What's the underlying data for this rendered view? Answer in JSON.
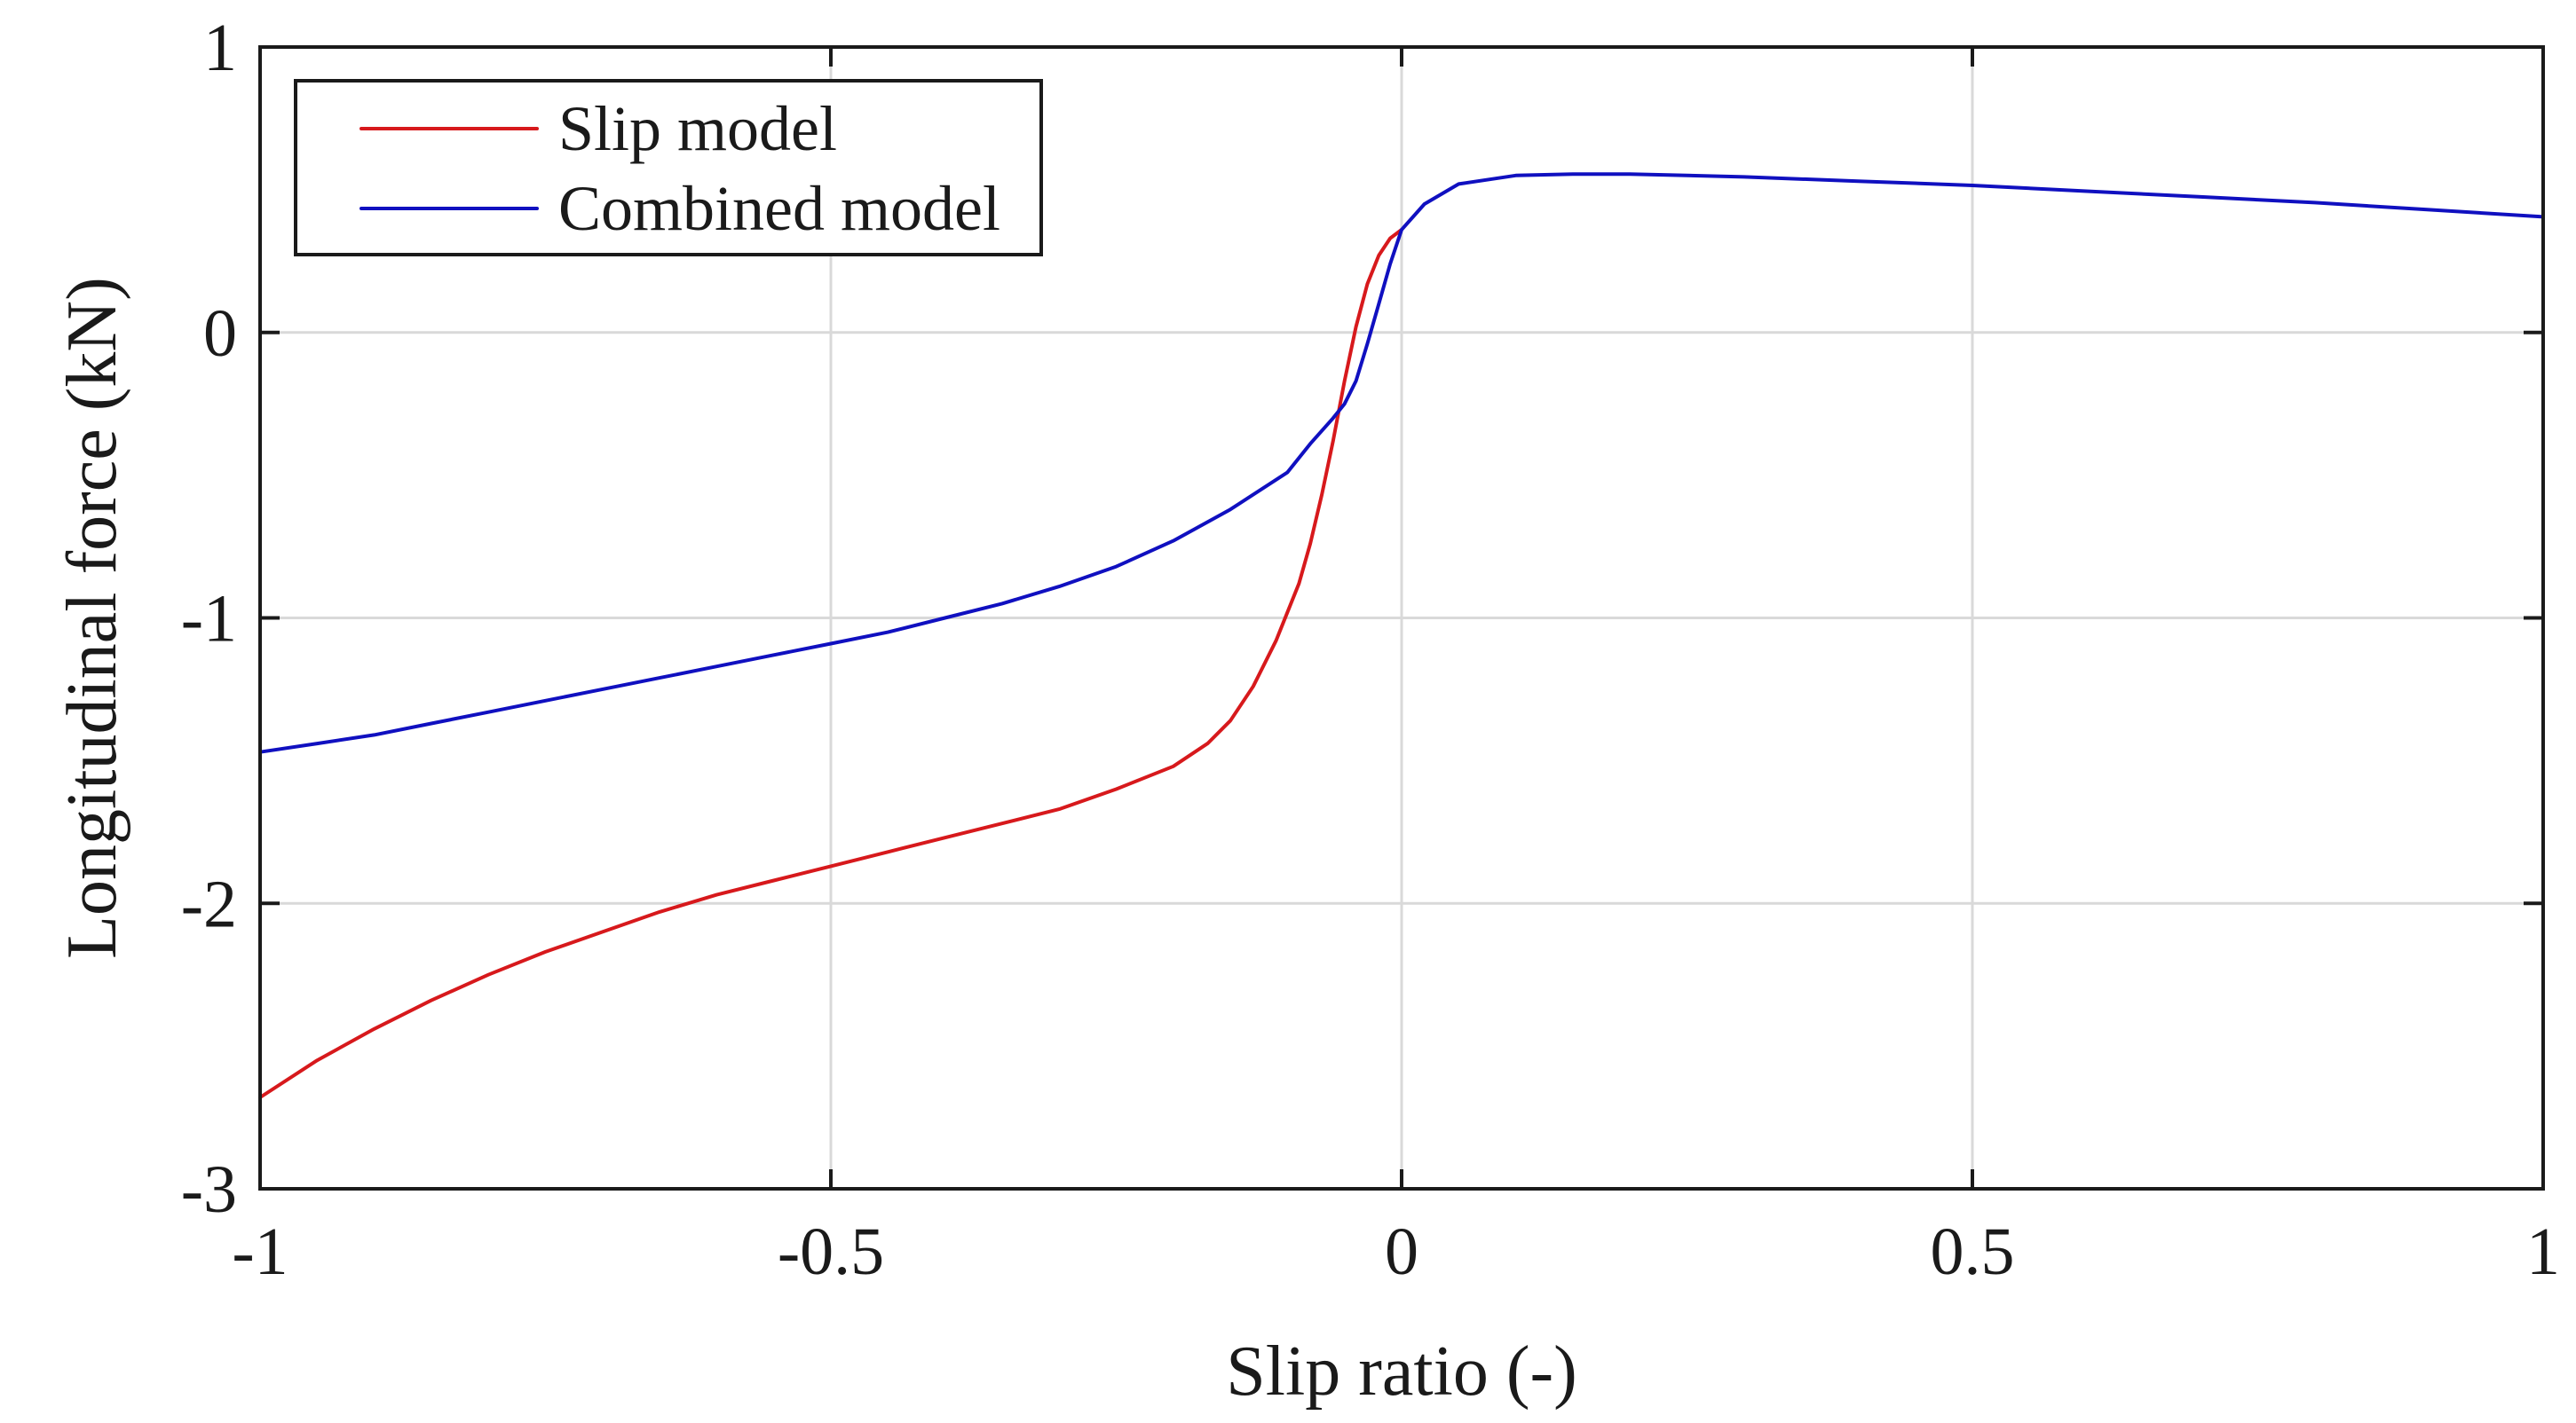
{
  "chart_data": {
    "type": "line",
    "title": "",
    "xlabel": "Slip ratio (-)",
    "ylabel": "Longitudinal force (kN)",
    "xlim": [
      -1,
      1
    ],
    "ylim": [
      -3,
      1
    ],
    "grid": true,
    "legend_position": "top-left",
    "x_ticks": [
      -1,
      -0.5,
      0,
      0.5,
      1
    ],
    "x_tick_labels": [
      "-1",
      "-0.5",
      "0",
      "0.5",
      "1"
    ],
    "y_ticks": [
      -3,
      -2,
      -1,
      0,
      1
    ],
    "y_tick_labels": [
      "-3",
      "-2",
      "-1",
      "0",
      "1"
    ],
    "series": [
      {
        "name": "Slip model",
        "color": "#d7191c",
        "points": [
          [
            -1.0,
            -2.68
          ],
          [
            -0.95,
            -2.55
          ],
          [
            -0.9,
            -2.44
          ],
          [
            -0.85,
            -2.34
          ],
          [
            -0.8,
            -2.25
          ],
          [
            -0.75,
            -2.17
          ],
          [
            -0.7,
            -2.1
          ],
          [
            -0.65,
            -2.03
          ],
          [
            -0.6,
            -1.97
          ],
          [
            -0.55,
            -1.92
          ],
          [
            -0.5,
            -1.87
          ],
          [
            -0.45,
            -1.82
          ],
          [
            -0.4,
            -1.77
          ],
          [
            -0.35,
            -1.72
          ],
          [
            -0.3,
            -1.67
          ],
          [
            -0.25,
            -1.6
          ],
          [
            -0.2,
            -1.52
          ],
          [
            -0.17,
            -1.44
          ],
          [
            -0.15,
            -1.36
          ],
          [
            -0.13,
            -1.24
          ],
          [
            -0.11,
            -1.08
          ],
          [
            -0.09,
            -0.88
          ],
          [
            -0.08,
            -0.74
          ],
          [
            -0.07,
            -0.57
          ],
          [
            -0.06,
            -0.38
          ],
          [
            -0.05,
            -0.17
          ],
          [
            -0.04,
            0.02
          ],
          [
            -0.03,
            0.17
          ],
          [
            -0.02,
            0.27
          ],
          [
            -0.01,
            0.33
          ],
          [
            0.0,
            0.36
          ]
        ]
      },
      {
        "name": "Combined model",
        "color": "#1010c0",
        "points": [
          [
            -1.0,
            -1.47
          ],
          [
            -0.95,
            -1.44
          ],
          [
            -0.9,
            -1.41
          ],
          [
            -0.85,
            -1.37
          ],
          [
            -0.8,
            -1.33
          ],
          [
            -0.75,
            -1.29
          ],
          [
            -0.7,
            -1.25
          ],
          [
            -0.65,
            -1.21
          ],
          [
            -0.6,
            -1.17
          ],
          [
            -0.55,
            -1.13
          ],
          [
            -0.5,
            -1.09
          ],
          [
            -0.45,
            -1.05
          ],
          [
            -0.4,
            -1.0
          ],
          [
            -0.35,
            -0.95
          ],
          [
            -0.3,
            -0.89
          ],
          [
            -0.25,
            -0.82
          ],
          [
            -0.2,
            -0.73
          ],
          [
            -0.15,
            -0.62
          ],
          [
            -0.1,
            -0.49
          ],
          [
            -0.08,
            -0.39
          ],
          [
            -0.06,
            -0.3
          ],
          [
            -0.05,
            -0.25
          ],
          [
            -0.04,
            -0.17
          ],
          [
            -0.03,
            -0.04
          ],
          [
            -0.02,
            0.1
          ],
          [
            -0.01,
            0.24
          ],
          [
            0.0,
            0.36
          ],
          [
            0.02,
            0.45
          ],
          [
            0.05,
            0.52
          ],
          [
            0.1,
            0.55
          ],
          [
            0.15,
            0.555
          ],
          [
            0.2,
            0.555
          ],
          [
            0.3,
            0.545
          ],
          [
            0.4,
            0.53
          ],
          [
            0.5,
            0.515
          ],
          [
            0.6,
            0.495
          ],
          [
            0.7,
            0.475
          ],
          [
            0.8,
            0.455
          ],
          [
            0.9,
            0.43
          ],
          [
            1.0,
            0.405
          ]
        ]
      }
    ]
  }
}
